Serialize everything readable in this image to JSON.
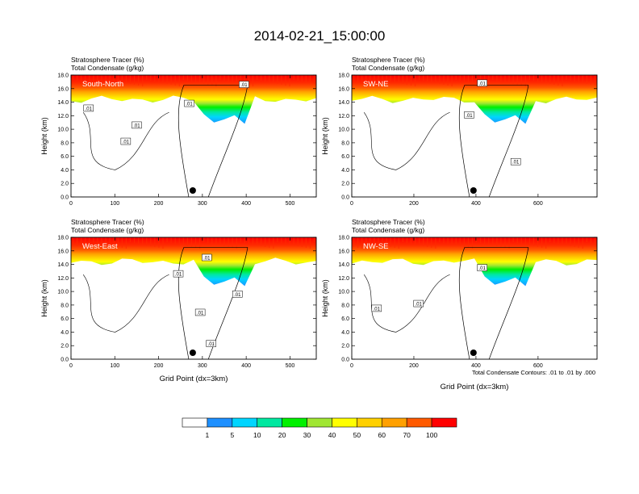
{
  "title": "2014-02-21_15:00:00",
  "footnote": "Total Condensate Contours: .01 to .01 by .000",
  "colorbar": {
    "colors": [
      "#ffffff",
      "#1e90ff",
      "#00d5ff",
      "#00e8a0",
      "#00f000",
      "#a0e632",
      "#ffff00",
      "#ffd000",
      "#ffa000",
      "#ff5a00",
      "#ff0000"
    ],
    "labels": [
      "1",
      "5",
      "10",
      "20",
      "30",
      "40",
      "50",
      "60",
      "70",
      "100"
    ]
  },
  "chart_data": [
    {
      "type": "heatmap",
      "panel_label": "South-North",
      "subtitle_line1": "Stratosphere Tracer   (%)",
      "subtitle_line2": "Total Condensate   (g/kg)",
      "ylabel": "Height (km)",
      "xlabel": "",
      "xlim": [
        0,
        560
      ],
      "ylim": [
        0,
        18
      ],
      "xticks": [
        "0",
        "100",
        "200",
        "300",
        "400",
        "500"
      ],
      "yticks": [
        "0.0",
        "2.0",
        "4.0",
        "6.0",
        "8.0",
        "10.0",
        "12.0",
        "14.0",
        "16.0",
        "18.0"
      ],
      "marker_x": 278,
      "contour_labels": [
        {
          "text": ".01",
          "x": 40,
          "y": 13.0
        },
        {
          "text": ".01",
          "x": 150,
          "y": 10.5
        },
        {
          "text": ".01",
          "x": 125,
          "y": 8.1
        },
        {
          "text": ".01",
          "x": 270,
          "y": 13.7
        },
        {
          "text": ".01",
          "x": 395,
          "y": 16.5
        }
      ]
    },
    {
      "type": "heatmap",
      "panel_label": "SW-NE",
      "subtitle_line1": "Stratosphere Tracer   (%)",
      "subtitle_line2": "Total Condensate   (g/kg)",
      "ylabel": "Height (km)",
      "xlabel": "",
      "xlim": [
        0,
        790
      ],
      "ylim": [
        0,
        18
      ],
      "xticks": [
        "0",
        "200",
        "400",
        "600"
      ],
      "yticks": [
        "0.0",
        "2.0",
        "4.0",
        "6.0",
        "8.0",
        "10.0",
        "12.0",
        "14.0",
        "16.0",
        "18.0"
      ],
      "marker_x": 392,
      "contour_labels": [
        {
          "text": ".01",
          "x": 420,
          "y": 16.7
        },
        {
          "text": ".01",
          "x": 378,
          "y": 12.0
        },
        {
          "text": ".01",
          "x": 528,
          "y": 5.1
        }
      ]
    },
    {
      "type": "heatmap",
      "panel_label": "West-East",
      "subtitle_line1": "Stratosphere Tracer   (%)",
      "subtitle_line2": "Total Condensate   (g/kg)",
      "ylabel": "Height (km)",
      "xlabel": "Grid Point (dx=3km)",
      "xlim": [
        0,
        560
      ],
      "ylim": [
        0,
        18
      ],
      "xticks": [
        "0",
        "100",
        "200",
        "300",
        "400",
        "500"
      ],
      "yticks": [
        "0.0",
        "2.0",
        "4.0",
        "6.0",
        "8.0",
        "10.0",
        "12.0",
        "14.0",
        "16.0",
        "18.0"
      ],
      "marker_x": 278,
      "contour_labels": [
        {
          "text": ".01",
          "x": 310,
          "y": 14.9
        },
        {
          "text": ".01",
          "x": 245,
          "y": 12.5
        },
        {
          "text": ".01",
          "x": 380,
          "y": 9.5
        },
        {
          "text": ".01",
          "x": 295,
          "y": 6.8
        },
        {
          "text": ".01",
          "x": 320,
          "y": 2.2
        }
      ]
    },
    {
      "type": "heatmap",
      "panel_label": "NW-SE",
      "subtitle_line1": "Stratosphere Tracer   (%)",
      "subtitle_line2": "Total Condensate   (g/kg)",
      "ylabel": "Height (km)",
      "xlabel": "Grid Point (dx=3km)",
      "xlim": [
        0,
        790
      ],
      "ylim": [
        0,
        18
      ],
      "xticks": [
        "0",
        "200",
        "400",
        "600"
      ],
      "yticks": [
        "0.0",
        "2.0",
        "4.0",
        "6.0",
        "8.0",
        "10.0",
        "12.0",
        "14.0",
        "16.0",
        "18.0"
      ],
      "marker_x": 392,
      "contour_labels": [
        {
          "text": ".01",
          "x": 420,
          "y": 13.4
        },
        {
          "text": ".01",
          "x": 80,
          "y": 7.4
        },
        {
          "text": ".01",
          "x": 215,
          "y": 8.1
        }
      ]
    }
  ]
}
